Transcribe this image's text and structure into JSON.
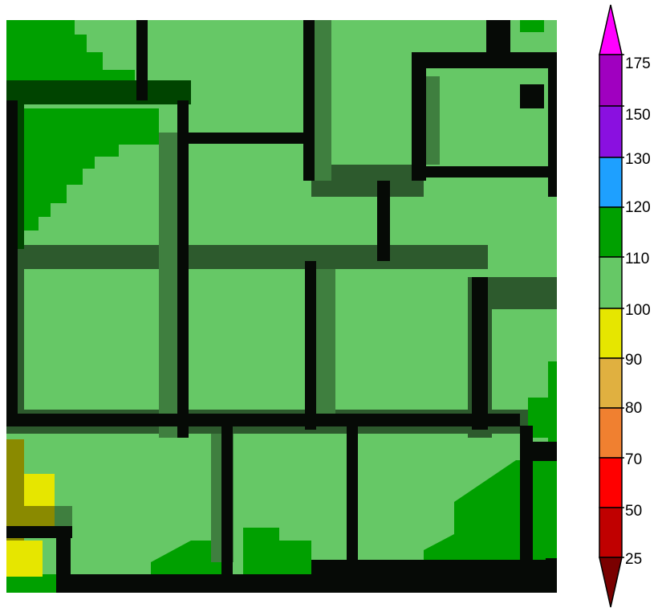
{
  "legend": {
    "bins": [
      {
        "from": null,
        "to": 25,
        "color": "#7a0000"
      },
      {
        "from": 25,
        "to": 50,
        "color": "#c00000"
      },
      {
        "from": 50,
        "to": 70,
        "color": "#ff0000"
      },
      {
        "from": 70,
        "to": 80,
        "color": "#f08030"
      },
      {
        "from": 80,
        "to": 90,
        "color": "#e0b040"
      },
      {
        "from": 90,
        "to": 100,
        "color": "#e6e600"
      },
      {
        "from": 100,
        "to": 110,
        "color": "#66c866"
      },
      {
        "from": 110,
        "to": 120,
        "color": "#00a000"
      },
      {
        "from": 120,
        "to": 130,
        "color": "#1ea0ff"
      },
      {
        "from": 130,
        "to": 150,
        "color": "#8a10e0"
      },
      {
        "from": 150,
        "to": 175,
        "color": "#a000c0"
      },
      {
        "from": 175,
        "to": null,
        "color": "#ff00ff"
      }
    ],
    "tick_labels": [
      "175",
      "150",
      "130",
      "120",
      "110",
      "100",
      "90",
      "80",
      "70",
      "50",
      "25"
    ]
  },
  "map": {
    "colors": {
      "road": "#060a06",
      "road_shadow": "#2d5a2d",
      "road_edge": "#3f7f3f",
      "light_green": "#66c866",
      "green": "#00a000",
      "dark_green": "#004400",
      "yellow": "#e6e600",
      "olive": "#8a8a00"
    },
    "feature_names": [
      "city-blocks",
      "street-grid",
      "vegetation-patches"
    ]
  }
}
